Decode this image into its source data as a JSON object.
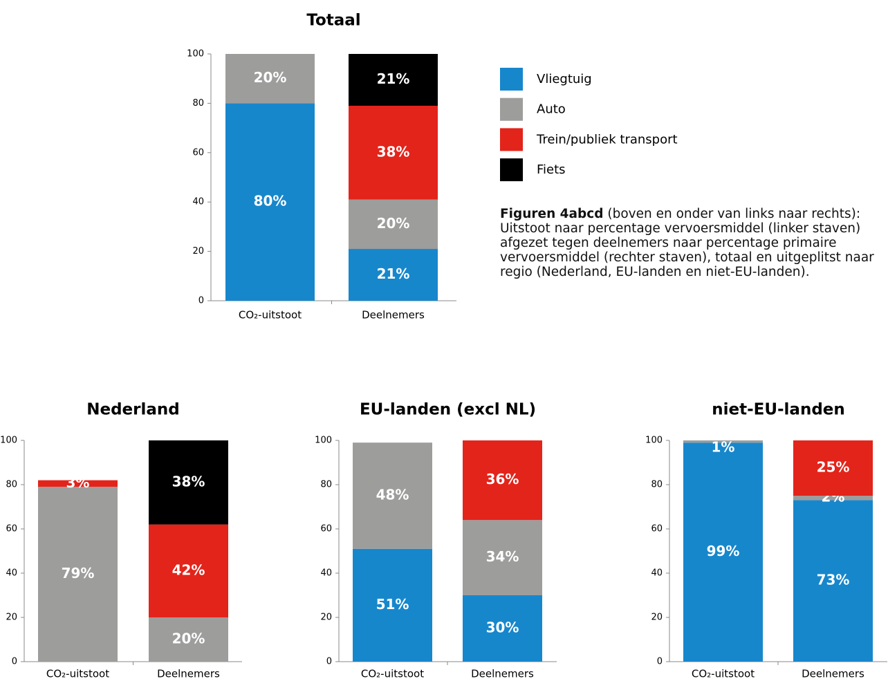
{
  "chart_data": [
    {
      "type": "bar",
      "stacked": true,
      "title": "Totaal",
      "categories": [
        "CO₂-uitstoot",
        "Deelnemers"
      ],
      "series": [
        {
          "name": "Vliegtuig",
          "color": "#1787cc",
          "values": [
            80,
            21
          ],
          "value_labels": [
            "80%",
            "21%"
          ]
        },
        {
          "name": "Auto",
          "color": "#9d9d9c",
          "values": [
            20,
            20
          ],
          "value_labels": [
            "20%",
            "20%"
          ]
        },
        {
          "name": "Trein/publiek transport",
          "color": "#e3241b",
          "values": [
            0,
            38
          ],
          "value_labels": [
            null,
            "38%"
          ]
        },
        {
          "name": "Fiets",
          "color": "#000000",
          "values": [
            0,
            21
          ],
          "value_labels": [
            null,
            "21%"
          ]
        }
      ],
      "ylim": [
        0,
        100
      ],
      "yticks": [
        0,
        20,
        40,
        60,
        80,
        100
      ],
      "grid": false
    },
    {
      "type": "bar",
      "stacked": true,
      "title": "Nederland",
      "categories": [
        "CO₂-uitstoot",
        "Deelnemers"
      ],
      "series": [
        {
          "color": "#1787cc",
          "values": [
            0,
            0
          ],
          "value_labels": [
            null,
            null
          ]
        },
        {
          "color": "#9d9d9c",
          "values": [
            79,
            20
          ],
          "value_labels": [
            "79%",
            "20%"
          ]
        },
        {
          "color": "#e3241b",
          "values": [
            3,
            42
          ],
          "value_labels": [
            "3%",
            "42%"
          ]
        },
        {
          "color": "#000000",
          "values": [
            0,
            38
          ],
          "value_labels": [
            null,
            "38%"
          ]
        }
      ],
      "ylim": [
        0,
        100
      ],
      "yticks": [
        0,
        20,
        40,
        60,
        80,
        100
      ],
      "grid": false
    },
    {
      "type": "bar",
      "stacked": true,
      "title": "EU-landen (excl NL)",
      "categories": [
        "CO₂-uitstoot",
        "Deelnemers"
      ],
      "series": [
        {
          "color": "#1787cc",
          "values": [
            51,
            30
          ],
          "value_labels": [
            "51%",
            "30%"
          ]
        },
        {
          "color": "#9d9d9c",
          "values": [
            48,
            34
          ],
          "value_labels": [
            "48%",
            "34%"
          ]
        },
        {
          "color": "#e3241b",
          "values": [
            0,
            36
          ],
          "value_labels": [
            null,
            "36%"
          ]
        },
        {
          "color": "#000000",
          "values": [
            0,
            0
          ],
          "value_labels": [
            null,
            null
          ]
        }
      ],
      "ylim": [
        0,
        100
      ],
      "yticks": [
        0,
        20,
        40,
        60,
        80,
        100
      ],
      "grid": false
    },
    {
      "type": "bar",
      "stacked": true,
      "title": "niet-EU-landen",
      "categories": [
        "CO₂-uitstoot",
        "Deelnemers"
      ],
      "series": [
        {
          "color": "#1787cc",
          "values": [
            99,
            73
          ],
          "value_labels": [
            "99%",
            "73%"
          ]
        },
        {
          "color": "#9d9d9c",
          "values": [
            1,
            2
          ],
          "value_labels": [
            "1%",
            "2%"
          ]
        },
        {
          "color": "#e3241b",
          "values": [
            0,
            25
          ],
          "value_labels": [
            null,
            "25%"
          ]
        },
        {
          "color": "#000000",
          "values": [
            0,
            0
          ],
          "value_labels": [
            null,
            null
          ]
        }
      ],
      "ylim": [
        0,
        100
      ],
      "yticks": [
        0,
        20,
        40,
        60,
        80,
        100
      ],
      "grid": false
    }
  ],
  "caption": {
    "bold": "Figuren 4abcd",
    "text": "(boven en onder van links naar rechts): Uitstoot naar percentage vervoersmiddel (linker staven) afgezet tegen deelnemers naar percentage primaire vervoersmiddel (rechter staven), totaal en uitgeplitst naar regio (Nederland, EU-landen en niet-EU-landen)."
  }
}
